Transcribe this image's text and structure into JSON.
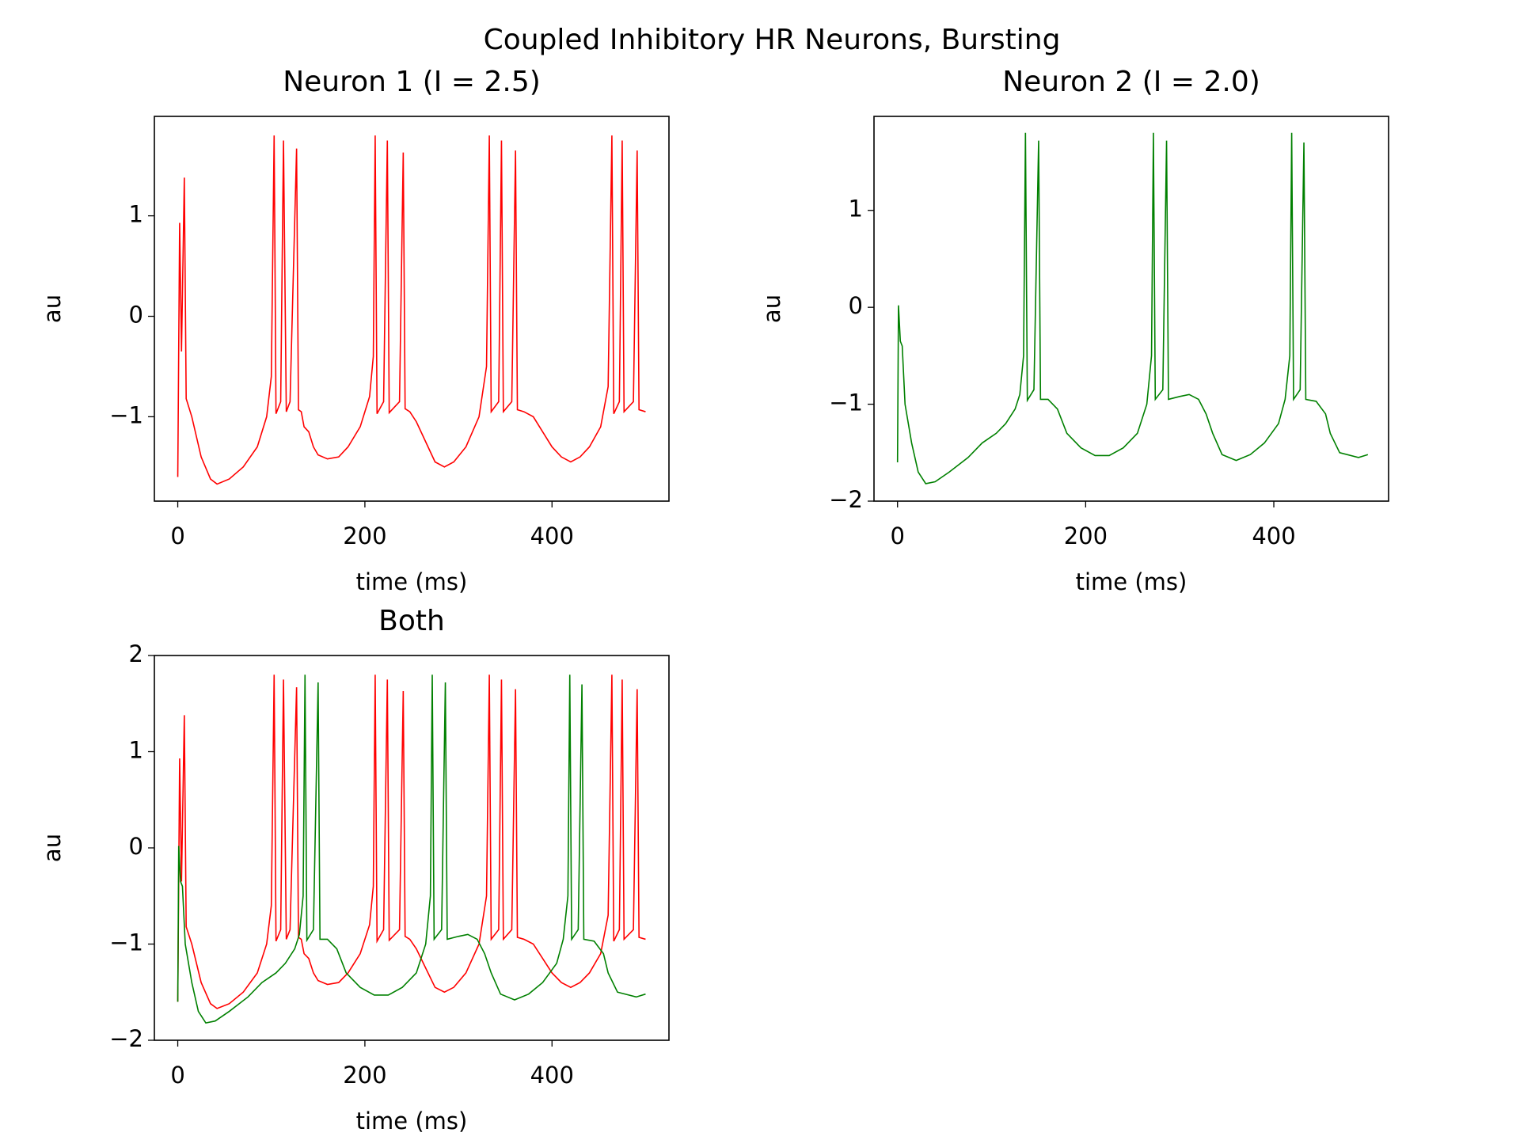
{
  "title": "Coupled Inhibitory HR Neurons, Bursting",
  "chart_data": [
    {
      "type": "line",
      "title": "Neuron 1 (I = 2.5)",
      "xlabel": "time (ms)",
      "ylabel": "au",
      "xlim": [
        -25,
        525
      ],
      "ylim": [
        -1.84,
        1.99
      ],
      "xticks": [
        0,
        200,
        400
      ],
      "yticks": [
        {
          "value": -1,
          "label": "−1"
        },
        0,
        1
      ],
      "series": [
        {
          "color": "#ff0000",
          "x": [
            0,
            2,
            4,
            7,
            9,
            15,
            25,
            35,
            42,
            55,
            70,
            85,
            95,
            100,
            103,
            105,
            110,
            113,
            116,
            120,
            127,
            129,
            132,
            135,
            140,
            145,
            150,
            160,
            172,
            182,
            195,
            205,
            209,
            211,
            213,
            220,
            224,
            226,
            237,
            241,
            243,
            248,
            255,
            265,
            275,
            285,
            295,
            308,
            322,
            330,
            333,
            335,
            343,
            346,
            348,
            357,
            361,
            363,
            370,
            380,
            390,
            400,
            410,
            420,
            430,
            440,
            452,
            460,
            464,
            466,
            472,
            475,
            477,
            487,
            491,
            493,
            500
          ],
          "values": [
            -1.6,
            0.93,
            -0.35,
            1.38,
            -0.82,
            -1.0,
            -1.4,
            -1.62,
            -1.67,
            -1.62,
            -1.5,
            -1.3,
            -1.0,
            -0.6,
            1.8,
            -0.97,
            -0.85,
            1.75,
            -0.95,
            -0.85,
            1.67,
            -0.93,
            -0.95,
            -1.1,
            -1.15,
            -1.3,
            -1.38,
            -1.42,
            -1.4,
            -1.3,
            -1.1,
            -0.8,
            -0.4,
            1.8,
            -0.97,
            -0.85,
            1.75,
            -0.96,
            -0.85,
            1.63,
            -0.92,
            -0.95,
            -1.05,
            -1.25,
            -1.45,
            -1.5,
            -1.45,
            -1.3,
            -1.0,
            -0.5,
            1.8,
            -0.95,
            -0.85,
            1.75,
            -0.95,
            -0.85,
            1.65,
            -0.93,
            -0.95,
            -1.0,
            -1.15,
            -1.3,
            -1.4,
            -1.45,
            -1.4,
            -1.3,
            -1.1,
            -0.7,
            1.8,
            -0.97,
            -0.85,
            1.75,
            -0.95,
            -0.85,
            1.65,
            -0.93,
            -0.95
          ]
        }
      ]
    },
    {
      "type": "line",
      "title": "Neuron 2 (I = 2.0)",
      "xlabel": "time (ms)",
      "ylabel": "au",
      "xlim": [
        -25,
        522
      ],
      "ylim": [
        -2.0,
        1.97
      ],
      "xticks": [
        0,
        200,
        400
      ],
      "yticks": [
        {
          "value": -2,
          "label": "−2"
        },
        {
          "value": -1,
          "label": "−1"
        },
        0,
        1
      ],
      "series": [
        {
          "color": "#008000",
          "x": [
            0,
            1,
            3,
            5,
            8,
            15,
            22,
            30,
            40,
            55,
            75,
            90,
            105,
            115,
            125,
            130,
            134,
            136,
            138,
            145,
            150,
            152,
            160,
            170,
            180,
            195,
            210,
            225,
            240,
            255,
            265,
            270,
            272,
            274,
            282,
            286,
            288,
            300,
            310,
            320,
            328,
            335,
            345,
            360,
            375,
            390,
            405,
            412,
            417,
            419,
            421,
            428,
            432,
            434,
            445,
            455,
            460,
            470,
            490,
            500
          ],
          "values": [
            -1.6,
            0.02,
            -0.35,
            -0.4,
            -1.0,
            -1.4,
            -1.7,
            -1.82,
            -1.8,
            -1.7,
            -1.55,
            -1.4,
            -1.3,
            -1.2,
            -1.05,
            -0.9,
            -0.5,
            1.8,
            -0.96,
            -0.85,
            1.72,
            -0.95,
            -0.95,
            -1.05,
            -1.3,
            -1.45,
            -1.53,
            -1.53,
            -1.45,
            -1.3,
            -1.0,
            -0.5,
            1.8,
            -0.95,
            -0.85,
            1.72,
            -0.95,
            -0.92,
            -0.9,
            -0.95,
            -1.1,
            -1.3,
            -1.52,
            -1.58,
            -1.52,
            -1.4,
            -1.2,
            -0.95,
            -0.5,
            1.8,
            -0.95,
            -0.85,
            1.7,
            -0.95,
            -0.97,
            -1.1,
            -1.3,
            -1.5,
            -1.55,
            -1.52
          ]
        }
      ]
    },
    {
      "type": "line",
      "title": "Both",
      "xlabel": "time (ms)",
      "ylabel": "au",
      "xlim": [
        -25,
        525
      ],
      "ylim": [
        -2.0,
        2.0
      ],
      "xticks": [
        0,
        200,
        400
      ],
      "yticks": [
        {
          "value": -2,
          "label": "−2"
        },
        {
          "value": -1,
          "label": "−1"
        },
        0,
        1,
        2
      ],
      "series": [
        {
          "color": "#ff0000",
          "x": [
            0,
            2,
            4,
            7,
            9,
            15,
            25,
            35,
            42,
            55,
            70,
            85,
            95,
            100,
            103,
            105,
            110,
            113,
            116,
            120,
            127,
            129,
            132,
            135,
            140,
            145,
            150,
            160,
            172,
            182,
            195,
            205,
            209,
            211,
            213,
            220,
            224,
            226,
            237,
            241,
            243,
            248,
            255,
            265,
            275,
            285,
            295,
            308,
            322,
            330,
            333,
            335,
            343,
            346,
            348,
            357,
            361,
            363,
            370,
            380,
            390,
            400,
            410,
            420,
            430,
            440,
            452,
            460,
            464,
            466,
            472,
            475,
            477,
            487,
            491,
            493,
            500
          ],
          "values": [
            -1.6,
            0.93,
            -0.35,
            1.38,
            -0.82,
            -1.0,
            -1.4,
            -1.62,
            -1.67,
            -1.62,
            -1.5,
            -1.3,
            -1.0,
            -0.6,
            1.8,
            -0.97,
            -0.85,
            1.75,
            -0.95,
            -0.85,
            1.67,
            -0.93,
            -0.95,
            -1.1,
            -1.15,
            -1.3,
            -1.38,
            -1.42,
            -1.4,
            -1.3,
            -1.1,
            -0.8,
            -0.4,
            1.8,
            -0.97,
            -0.85,
            1.75,
            -0.96,
            -0.85,
            1.63,
            -0.92,
            -0.95,
            -1.05,
            -1.25,
            -1.45,
            -1.5,
            -1.45,
            -1.3,
            -1.0,
            -0.5,
            1.8,
            -0.95,
            -0.85,
            1.75,
            -0.95,
            -0.85,
            1.65,
            -0.93,
            -0.95,
            -1.0,
            -1.15,
            -1.3,
            -1.4,
            -1.45,
            -1.4,
            -1.3,
            -1.1,
            -0.7,
            1.8,
            -0.97,
            -0.85,
            1.75,
            -0.95,
            -0.85,
            1.65,
            -0.93,
            -0.95
          ]
        },
        {
          "color": "#008000",
          "x": [
            0,
            1,
            3,
            5,
            8,
            15,
            22,
            30,
            40,
            55,
            75,
            90,
            105,
            115,
            125,
            130,
            134,
            136,
            138,
            145,
            150,
            152,
            160,
            170,
            180,
            195,
            210,
            225,
            240,
            255,
            265,
            270,
            272,
            274,
            282,
            286,
            288,
            300,
            310,
            320,
            328,
            335,
            345,
            360,
            375,
            390,
            405,
            412,
            417,
            419,
            421,
            428,
            432,
            434,
            445,
            455,
            460,
            470,
            490,
            500
          ],
          "values": [
            -1.6,
            0.02,
            -0.35,
            -0.4,
            -1.0,
            -1.4,
            -1.7,
            -1.82,
            -1.8,
            -1.7,
            -1.55,
            -1.4,
            -1.3,
            -1.2,
            -1.05,
            -0.9,
            -0.5,
            1.8,
            -0.96,
            -0.85,
            1.72,
            -0.95,
            -0.95,
            -1.05,
            -1.3,
            -1.45,
            -1.53,
            -1.53,
            -1.45,
            -1.3,
            -1.0,
            -0.5,
            1.8,
            -0.95,
            -0.85,
            1.72,
            -0.95,
            -0.92,
            -0.9,
            -0.95,
            -1.1,
            -1.3,
            -1.52,
            -1.58,
            -1.52,
            -1.4,
            -1.2,
            -0.95,
            -0.5,
            1.8,
            -0.95,
            -0.85,
            1.7,
            -0.95,
            -0.97,
            -1.1,
            -1.3,
            -1.5,
            -1.55,
            -1.52
          ]
        }
      ]
    }
  ]
}
